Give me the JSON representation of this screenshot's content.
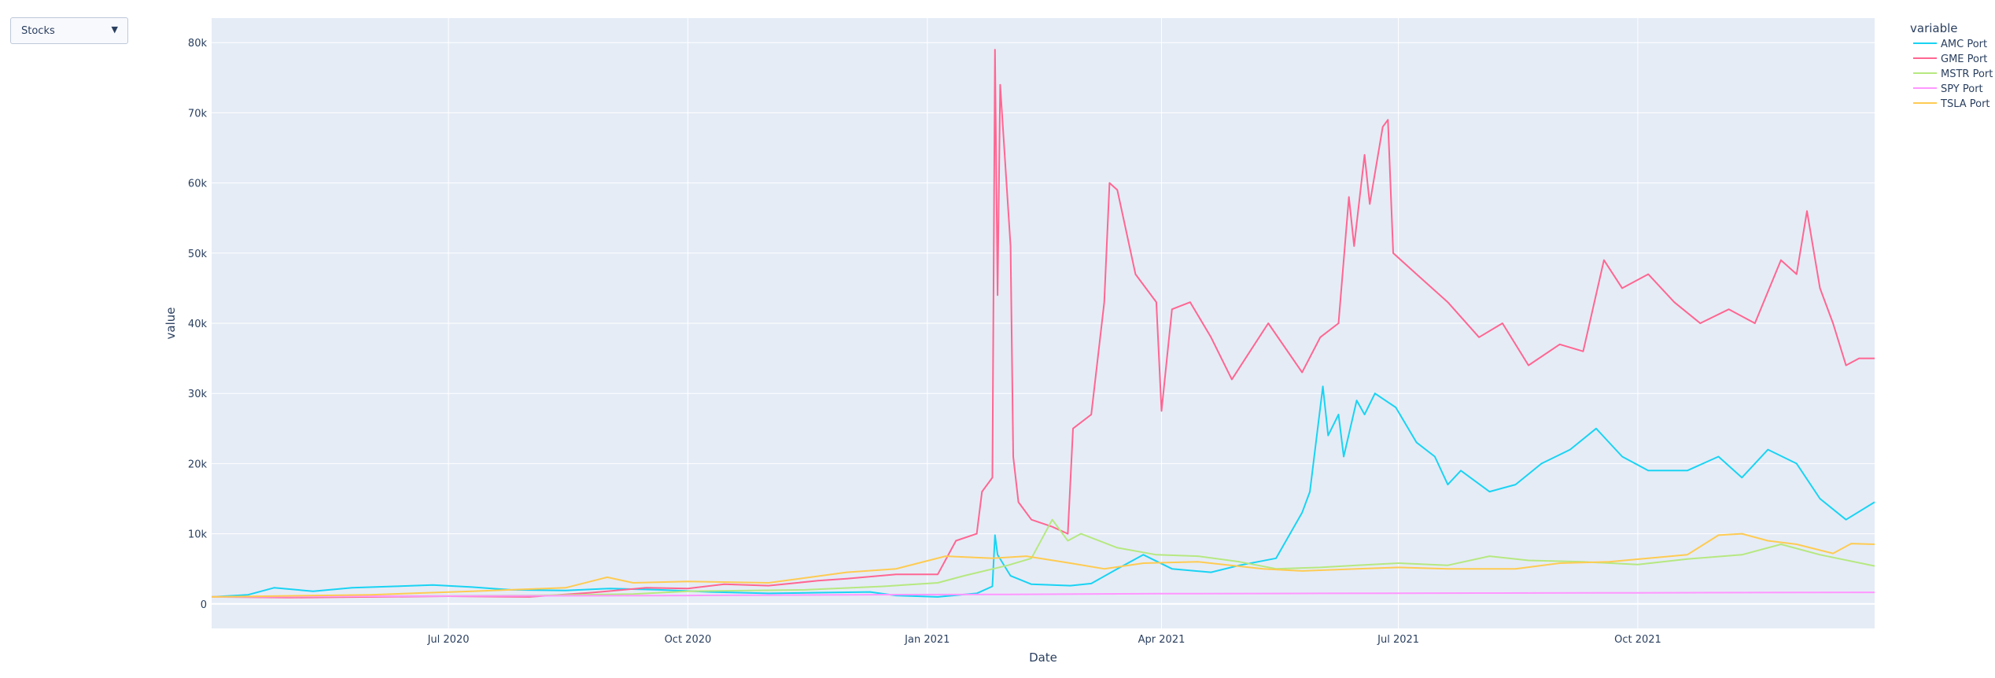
{
  "dropdown": {
    "label": "Stocks",
    "arrow": "▼"
  },
  "colors": {
    "plot_bg": "#e5ecf6",
    "grid": "#ffffff",
    "text": "#2a3f5f"
  },
  "chart_data": {
    "type": "line",
    "xlabel": "Date",
    "ylabel": "value",
    "x_ticks": [
      {
        "date": "2020-07-01",
        "label": "Jul 2020"
      },
      {
        "date": "2020-10-01",
        "label": "Oct 2020"
      },
      {
        "date": "2021-01-01",
        "label": "Jan 2021"
      },
      {
        "date": "2021-04-01",
        "label": "Apr 2021"
      },
      {
        "date": "2021-07-01",
        "label": "Jul 2021"
      },
      {
        "date": "2021-10-01",
        "label": "Oct 2021"
      }
    ],
    "y_ticks": [
      {
        "value": 0,
        "label": "0"
      },
      {
        "value": 10000,
        "label": "10k"
      },
      {
        "value": 20000,
        "label": "20k"
      },
      {
        "value": 30000,
        "label": "30k"
      },
      {
        "value": 40000,
        "label": "40k"
      },
      {
        "value": 50000,
        "label": "50k"
      },
      {
        "value": 60000,
        "label": "60k"
      },
      {
        "value": 70000,
        "label": "70k"
      },
      {
        "value": 80000,
        "label": "80k"
      }
    ],
    "xlim": [
      "2020-04-01",
      "2021-12-31"
    ],
    "ylim": [
      -3500,
      83500
    ],
    "grid": true,
    "legend_title": "variable",
    "legend_position": "right",
    "series": [
      {
        "name": "AMC Port",
        "color": "#19d3f3",
        "points": [
          [
            "2020-04-01",
            1000
          ],
          [
            "2020-04-15",
            1300
          ],
          [
            "2020-04-25",
            2300
          ],
          [
            "2020-05-10",
            1800
          ],
          [
            "2020-05-25",
            2300
          ],
          [
            "2020-06-10",
            2500
          ],
          [
            "2020-06-25",
            2700
          ],
          [
            "2020-07-10",
            2400
          ],
          [
            "2020-07-25",
            2000
          ],
          [
            "2020-08-15",
            1900
          ],
          [
            "2020-09-01",
            2200
          ],
          [
            "2020-09-20",
            2000
          ],
          [
            "2020-10-10",
            1700
          ],
          [
            "2020-11-01",
            1500
          ],
          [
            "2020-11-20",
            1600
          ],
          [
            "2020-12-10",
            1700
          ],
          [
            "2020-12-20",
            1200
          ],
          [
            "2021-01-05",
            1000
          ],
          [
            "2021-01-20",
            1500
          ],
          [
            "2021-01-26",
            2500
          ],
          [
            "2021-01-27",
            9800
          ],
          [
            "2021-01-28",
            7000
          ],
          [
            "2021-02-02",
            4000
          ],
          [
            "2021-02-10",
            2800
          ],
          [
            "2021-02-25",
            2600
          ],
          [
            "2021-03-05",
            2900
          ],
          [
            "2021-03-15",
            5000
          ],
          [
            "2021-03-25",
            7000
          ],
          [
            "2021-04-05",
            5000
          ],
          [
            "2021-04-20",
            4500
          ],
          [
            "2021-05-01",
            5500
          ],
          [
            "2021-05-15",
            6500
          ],
          [
            "2021-05-25",
            13000
          ],
          [
            "2021-05-28",
            16000
          ],
          [
            "2021-06-02",
            31000
          ],
          [
            "2021-06-04",
            24000
          ],
          [
            "2021-06-08",
            27000
          ],
          [
            "2021-06-10",
            21000
          ],
          [
            "2021-06-15",
            29000
          ],
          [
            "2021-06-18",
            27000
          ],
          [
            "2021-06-22",
            30000
          ],
          [
            "2021-06-30",
            28000
          ],
          [
            "2021-07-08",
            23000
          ],
          [
            "2021-07-15",
            21000
          ],
          [
            "2021-07-20",
            17000
          ],
          [
            "2021-07-25",
            19000
          ],
          [
            "2021-08-05",
            16000
          ],
          [
            "2021-08-15",
            17000
          ],
          [
            "2021-08-25",
            20000
          ],
          [
            "2021-09-05",
            22000
          ],
          [
            "2021-09-15",
            25000
          ],
          [
            "2021-09-25",
            21000
          ],
          [
            "2021-10-05",
            19000
          ],
          [
            "2021-10-20",
            19000
          ],
          [
            "2021-11-01",
            21000
          ],
          [
            "2021-11-10",
            18000
          ],
          [
            "2021-11-20",
            22000
          ],
          [
            "2021-12-01",
            20000
          ],
          [
            "2021-12-10",
            15000
          ],
          [
            "2021-12-20",
            12000
          ],
          [
            "2021-12-31",
            14500
          ]
        ]
      },
      {
        "name": "GME Port",
        "color": "#ff6692",
        "points": [
          [
            "2020-04-01",
            1000
          ],
          [
            "2020-05-01",
            900
          ],
          [
            "2020-06-01",
            1000
          ],
          [
            "2020-07-01",
            1100
          ],
          [
            "2020-08-01",
            1000
          ],
          [
            "2020-08-25",
            1600
          ],
          [
            "2020-09-15",
            2300
          ],
          [
            "2020-10-01",
            2200
          ],
          [
            "2020-10-15",
            2800
          ],
          [
            "2020-11-01",
            2600
          ],
          [
            "2020-11-20",
            3300
          ],
          [
            "2020-12-01",
            3600
          ],
          [
            "2020-12-20",
            4200
          ],
          [
            "2021-01-05",
            4200
          ],
          [
            "2021-01-12",
            9000
          ],
          [
            "2021-01-20",
            10000
          ],
          [
            "2021-01-22",
            16000
          ],
          [
            "2021-01-26",
            18000
          ],
          [
            "2021-01-27",
            79000
          ],
          [
            "2021-01-28",
            44000
          ],
          [
            "2021-01-29",
            74000
          ],
          [
            "2021-02-02",
            51000
          ],
          [
            "2021-02-03",
            21000
          ],
          [
            "2021-02-05",
            14500
          ],
          [
            "2021-02-10",
            12000
          ],
          [
            "2021-02-18",
            11000
          ],
          [
            "2021-02-24",
            10000
          ],
          [
            "2021-02-26",
            25000
          ],
          [
            "2021-03-05",
            27000
          ],
          [
            "2021-03-10",
            43000
          ],
          [
            "2021-03-12",
            60000
          ],
          [
            "2021-03-15",
            59000
          ],
          [
            "2021-03-22",
            47000
          ],
          [
            "2021-03-30",
            43000
          ],
          [
            "2021-04-01",
            27500
          ],
          [
            "2021-04-05",
            42000
          ],
          [
            "2021-04-12",
            43000
          ],
          [
            "2021-04-20",
            38000
          ],
          [
            "2021-04-28",
            32000
          ],
          [
            "2021-05-05",
            36000
          ],
          [
            "2021-05-12",
            40000
          ],
          [
            "2021-05-25",
            33000
          ],
          [
            "2021-06-01",
            38000
          ],
          [
            "2021-06-08",
            40000
          ],
          [
            "2021-06-12",
            58000
          ],
          [
            "2021-06-14",
            51000
          ],
          [
            "2021-06-18",
            64000
          ],
          [
            "2021-06-20",
            57000
          ],
          [
            "2021-06-25",
            68000
          ],
          [
            "2021-06-27",
            69000
          ],
          [
            "2021-06-29",
            50000
          ],
          [
            "2021-07-08",
            47000
          ],
          [
            "2021-07-20",
            43000
          ],
          [
            "2021-08-01",
            38000
          ],
          [
            "2021-08-10",
            40000
          ],
          [
            "2021-08-20",
            34000
          ],
          [
            "2021-09-01",
            37000
          ],
          [
            "2021-09-10",
            36000
          ],
          [
            "2021-09-18",
            49000
          ],
          [
            "2021-09-25",
            45000
          ],
          [
            "2021-10-05",
            47000
          ],
          [
            "2021-10-15",
            43000
          ],
          [
            "2021-10-25",
            40000
          ],
          [
            "2021-11-05",
            42000
          ],
          [
            "2021-11-15",
            40000
          ],
          [
            "2021-11-25",
            49000
          ],
          [
            "2021-12-01",
            47000
          ],
          [
            "2021-12-05",
            56000
          ],
          [
            "2021-12-10",
            45000
          ],
          [
            "2021-12-15",
            40000
          ],
          [
            "2021-12-20",
            34000
          ],
          [
            "2021-12-25",
            35000
          ],
          [
            "2021-12-31",
            35000
          ]
        ]
      },
      {
        "name": "MSTR Port",
        "color": "#b6e880",
        "points": [
          [
            "2020-04-01",
            1000
          ],
          [
            "2020-06-01",
            1100
          ],
          [
            "2020-08-01",
            1200
          ],
          [
            "2020-09-10",
            1400
          ],
          [
            "2020-10-01",
            1800
          ],
          [
            "2020-11-15",
            2000
          ],
          [
            "2020-12-15",
            2500
          ],
          [
            "2021-01-05",
            3000
          ],
          [
            "2021-01-15",
            4000
          ],
          [
            "2021-02-01",
            5500
          ],
          [
            "2021-02-10",
            6500
          ],
          [
            "2021-02-18",
            12000
          ],
          [
            "2021-02-24",
            9000
          ],
          [
            "2021-03-01",
            10000
          ],
          [
            "2021-03-15",
            8000
          ],
          [
            "2021-03-30",
            7000
          ],
          [
            "2021-04-15",
            6800
          ],
          [
            "2021-05-01",
            6000
          ],
          [
            "2021-05-15",
            5000
          ],
          [
            "2021-06-01",
            5200
          ],
          [
            "2021-06-15",
            5500
          ],
          [
            "2021-07-01",
            5800
          ],
          [
            "2021-07-20",
            5500
          ],
          [
            "2021-08-05",
            6800
          ],
          [
            "2021-08-20",
            6200
          ],
          [
            "2021-09-10",
            6000
          ],
          [
            "2021-10-01",
            5600
          ],
          [
            "2021-10-20",
            6400
          ],
          [
            "2021-11-10",
            7000
          ],
          [
            "2021-11-25",
            8500
          ],
          [
            "2021-12-10",
            7000
          ],
          [
            "2021-12-31",
            5400
          ]
        ]
      },
      {
        "name": "SPY Port",
        "color": "#ff97ff",
        "points": [
          [
            "2020-04-01",
            1000
          ],
          [
            "2020-06-01",
            1100
          ],
          [
            "2020-08-01",
            1150
          ],
          [
            "2020-10-01",
            1200
          ],
          [
            "2020-12-01",
            1300
          ],
          [
            "2021-02-01",
            1350
          ],
          [
            "2021-04-01",
            1450
          ],
          [
            "2021-06-01",
            1500
          ],
          [
            "2021-08-01",
            1550
          ],
          [
            "2021-10-01",
            1580
          ],
          [
            "2021-12-01",
            1620
          ],
          [
            "2021-12-31",
            1650
          ]
        ]
      },
      {
        "name": "TSLA Port",
        "color": "#fecb52",
        "points": [
          [
            "2020-04-01",
            1000
          ],
          [
            "2020-06-01",
            1300
          ],
          [
            "2020-07-10",
            1800
          ],
          [
            "2020-08-15",
            2300
          ],
          [
            "2020-08-31",
            3800
          ],
          [
            "2020-09-10",
            3000
          ],
          [
            "2020-10-01",
            3200
          ],
          [
            "2020-11-01",
            3000
          ],
          [
            "2020-12-01",
            4500
          ],
          [
            "2020-12-20",
            5000
          ],
          [
            "2021-01-08",
            6800
          ],
          [
            "2021-01-26",
            6500
          ],
          [
            "2021-02-08",
            6800
          ],
          [
            "2021-02-25",
            5800
          ],
          [
            "2021-03-10",
            5000
          ],
          [
            "2021-03-25",
            5800
          ],
          [
            "2021-04-15",
            6000
          ],
          [
            "2021-05-10",
            5000
          ],
          [
            "2021-05-25",
            4700
          ],
          [
            "2021-06-15",
            5000
          ],
          [
            "2021-07-01",
            5200
          ],
          [
            "2021-07-20",
            5000
          ],
          [
            "2021-08-15",
            5000
          ],
          [
            "2021-09-01",
            5800
          ],
          [
            "2021-09-20",
            6000
          ],
          [
            "2021-10-20",
            7000
          ],
          [
            "2021-11-01",
            9800
          ],
          [
            "2021-11-10",
            10000
          ],
          [
            "2021-11-20",
            9000
          ],
          [
            "2021-12-01",
            8500
          ],
          [
            "2021-12-15",
            7200
          ],
          [
            "2021-12-22",
            8600
          ],
          [
            "2021-12-31",
            8500
          ]
        ]
      }
    ]
  }
}
